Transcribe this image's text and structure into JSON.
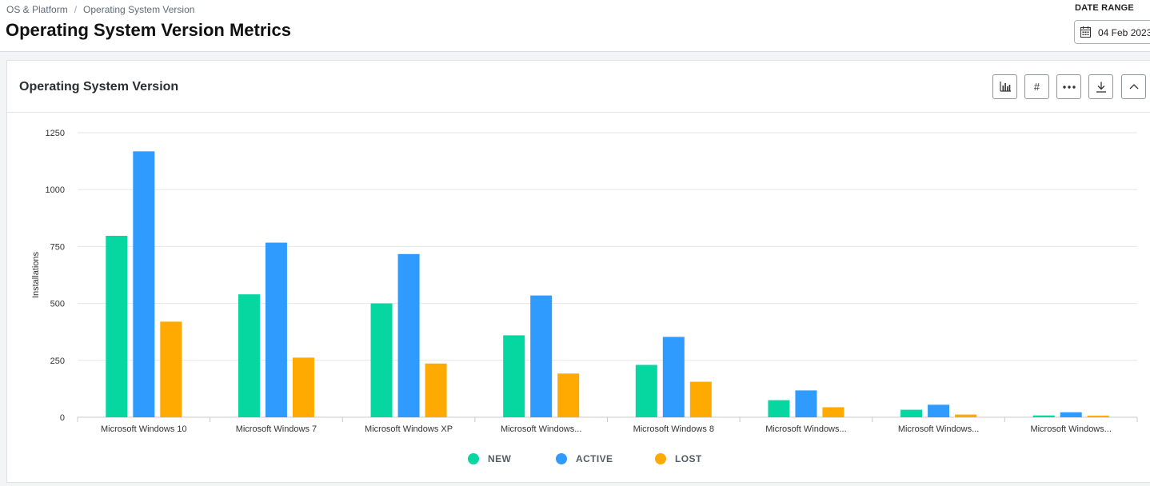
{
  "breadcrumb": {
    "root": "OS & Platform",
    "separator": "/",
    "current": "Operating System Version"
  },
  "header": {
    "title": "Operating System Version Metrics",
    "date_range_label": "DATE RANGE",
    "date_value": "04 Feb 2023",
    "calendar_icon": "calendar-icon"
  },
  "card": {
    "title": "Operating System Version",
    "tools": [
      {
        "name": "bar-chart-icon",
        "label": ""
      },
      {
        "name": "hash-icon",
        "label": "#"
      },
      {
        "name": "more-options-icon",
        "label": ""
      },
      {
        "name": "download-icon",
        "label": ""
      },
      {
        "name": "collapse-icon",
        "label": ""
      }
    ]
  },
  "colors": {
    "new": "#06d6a0",
    "active": "#2f9bff",
    "lost": "#ffaa00",
    "grid": "#e6e6e6"
  },
  "chart_data": {
    "type": "bar",
    "title": "",
    "xlabel": "",
    "ylabel": "Installations",
    "ylim": [
      0,
      1250
    ],
    "yticks": [
      0,
      250,
      500,
      750,
      1000,
      1250
    ],
    "grid": true,
    "legend_position": "bottom-center",
    "categories": [
      "Microsoft Windows 10",
      "Microsoft Windows 7",
      "Microsoft Windows XP",
      "Microsoft Windows...",
      "Microsoft Windows 8",
      "Microsoft Windows...",
      "Microsoft Windows...",
      "Microsoft Windows..."
    ],
    "series": [
      {
        "name": "NEW",
        "color": "#06d6a0",
        "values": [
          797,
          540,
          500,
          360,
          230,
          75,
          33,
          8
        ]
      },
      {
        "name": "ACTIVE",
        "color": "#2f9bff",
        "values": [
          1168,
          767,
          717,
          535,
          353,
          118,
          55,
          22
        ]
      },
      {
        "name": "LOST",
        "color": "#ffaa00",
        "values": [
          420,
          262,
          236,
          192,
          156,
          44,
          12,
          7
        ]
      }
    ]
  }
}
